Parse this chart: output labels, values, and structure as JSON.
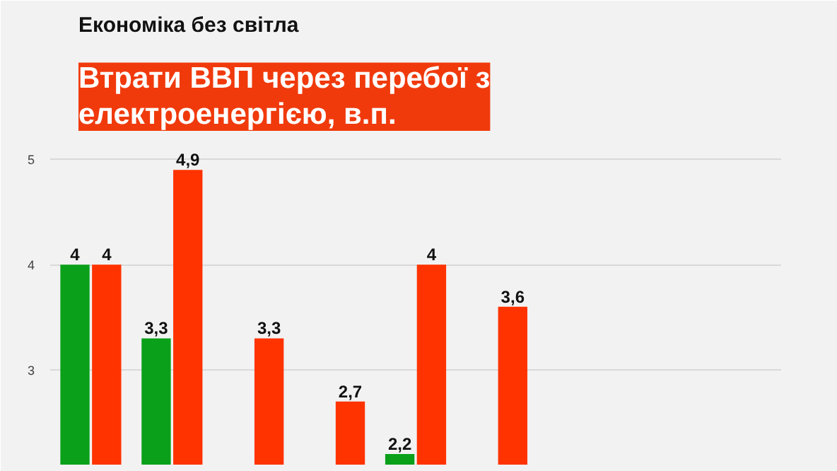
{
  "chart_data": {
    "type": "bar",
    "title": "Втрати ВВП через перебої з електроенергією, в.п.",
    "subtitle": "Економіка без світла",
    "categories": [
      null,
      null,
      null,
      null,
      null,
      null,
      null,
      null,
      null
    ],
    "series": [
      {
        "color": "#0aa01a",
        "values": [
          4,
          3.3,
          null,
          null,
          2.2,
          null,
          null,
          null,
          null
        ],
        "value_labels": [
          "4",
          "3,3",
          null,
          null,
          "2,2",
          null,
          null,
          null,
          null
        ]
      },
      {
        "color": "#ff3300",
        "values": [
          4,
          4.9,
          3.3,
          2.7,
          4,
          3.6,
          null,
          null,
          null
        ],
        "value_labels": [
          "4",
          "4,9",
          "3,3",
          "2,7",
          "4",
          "3,6",
          null,
          null,
          null
        ]
      }
    ],
    "ylim": [
      2.1,
      5.15
    ],
    "yticks": [
      3,
      4,
      5
    ],
    "grid": "y",
    "tick_labels": "y"
  }
}
